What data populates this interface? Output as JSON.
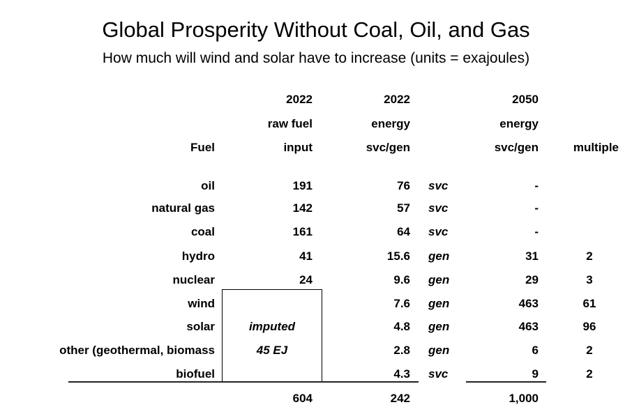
{
  "title": "Global Prosperity Without Coal, Oil, and Gas",
  "subtitle": "How much will wind and solar have to increase (units = exajoules)",
  "headers": {
    "fuel": "Fuel",
    "raw": [
      "2022",
      "raw fuel",
      "input"
    ],
    "energy2022": [
      "2022",
      "energy",
      "svc/gen"
    ],
    "energy2050": [
      "2050",
      "energy",
      "svc/gen"
    ],
    "multiple": "multiple"
  },
  "rows": [
    {
      "fuel": "oil",
      "raw": "191",
      "e2022": "76",
      "type": "svc",
      "e2050": "-",
      "multiple": ""
    },
    {
      "fuel": "natural gas",
      "raw": "142",
      "e2022": "57",
      "type": "svc",
      "e2050": "-",
      "multiple": ""
    },
    {
      "fuel": "coal",
      "raw": "161",
      "e2022": "64",
      "type": "svc",
      "e2050": "-",
      "multiple": ""
    },
    {
      "fuel": "hydro",
      "raw": "41",
      "e2022": "15.6",
      "type": "gen",
      "e2050": "31",
      "multiple": "2"
    },
    {
      "fuel": "nuclear",
      "raw": "24",
      "e2022": "9.6",
      "type": "gen",
      "e2050": "29",
      "multiple": "3"
    },
    {
      "fuel": "wind",
      "raw": "",
      "e2022": "7.6",
      "type": "gen",
      "e2050": "463",
      "multiple": "61"
    },
    {
      "fuel": "solar",
      "raw": "",
      "e2022": "4.8",
      "type": "gen",
      "e2050": "463",
      "multiple": "96"
    },
    {
      "fuel": "other (geothermal, biomass",
      "raw": "",
      "e2022": "2.8",
      "type": "gen",
      "e2050": "6",
      "multiple": "2"
    },
    {
      "fuel": "biofuel",
      "raw": "",
      "e2022": "4.3",
      "type": "svc",
      "e2050": "9",
      "multiple": "2"
    }
  ],
  "imputed": [
    "imputed",
    "45 EJ"
  ],
  "totals": {
    "raw": "604",
    "e2022": "242",
    "e2050": "1,000"
  }
}
